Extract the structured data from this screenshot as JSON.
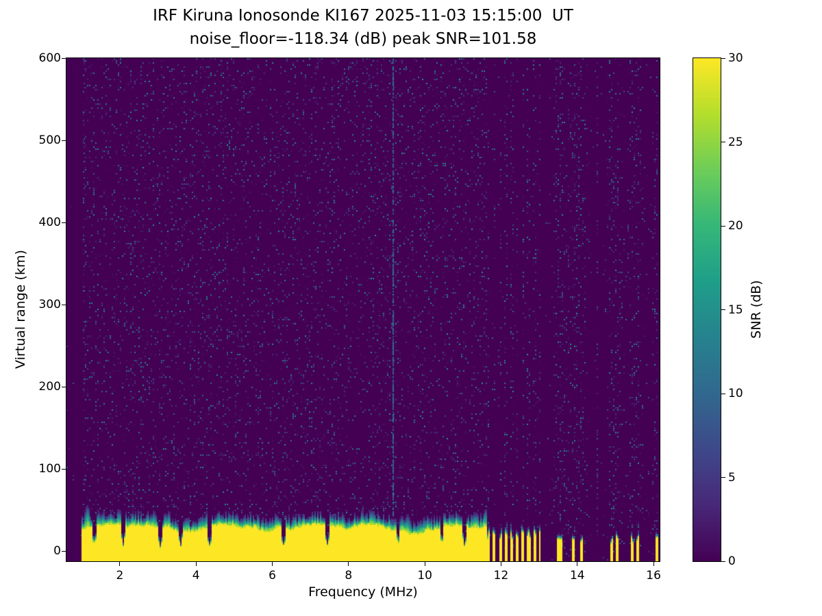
{
  "figure": {
    "title_line1": "IRF Kiruna Ionosonde KI167 2025-11-03 15:15:00  UT",
    "title_line2": "noise_floor=-118.34 (dB) peak SNR=101.58",
    "xlabel": "Frequency (MHz)",
    "ylabel": "Virtual range (km)",
    "colorbar_label": "SNR (dB)",
    "background_color": "#ffffff",
    "text_color": "#000000"
  },
  "chart_data": {
    "type": "heatmap",
    "title": "IRF Kiruna Ionosonde KI167 2025-11-03 15:15:00  UT",
    "subtitle": "noise_floor=-118.34 (dB) peak SNR=101.58",
    "station": "IRF Kiruna Ionosonde KI167",
    "timestamp_ut": "2025-11-03 15:15:00",
    "noise_floor_db": -118.34,
    "peak_snr_db": 101.58,
    "xlabel": "Frequency (MHz)",
    "ylabel": "Virtual range (km)",
    "colorbar_label": "SNR (dB)",
    "colormap": "viridis",
    "colormap_stops": [
      "#440154",
      "#482878",
      "#3e4989",
      "#31688e",
      "#26828e",
      "#1f9e89",
      "#35b779",
      "#6dcd59",
      "#b4de2c",
      "#fde725"
    ],
    "x_range_mhz": [
      0.6,
      16.16
    ],
    "y_range_km": [
      -12.5,
      600
    ],
    "x_ticks": [
      2,
      4,
      6,
      8,
      10,
      12,
      14,
      16
    ],
    "y_ticks": [
      0,
      100,
      200,
      300,
      400,
      500,
      600
    ],
    "colorbar_ticks": [
      0,
      5,
      10,
      15,
      20,
      25,
      30
    ],
    "colorbar_range_db": [
      0,
      30
    ],
    "features": {
      "noise": {
        "speckle_probability": 0.16,
        "max_speckle_db": 14,
        "data_start_mhz": 1.0,
        "striped_noise_start_mhz": 11.64,
        "interference_line_mhz": 9.15,
        "interference_line_db_range": [
          5,
          13
        ],
        "elevated_noise_columns_mhz": [
          1.05,
          14.5
        ]
      },
      "ground_band": {
        "start_mhz": 1.0,
        "continuous_until_mhz": 11.62,
        "yellow_top_km_range": [
          21,
          33
        ],
        "transition_extra_km_range": [
          6,
          18
        ],
        "notches_mhz": [
          1.35,
          2.1,
          3.05,
          3.6,
          4.35,
          6.3,
          7.45,
          9.3,
          10.45,
          11.05
        ],
        "bumps": [
          {
            "mhz": 1.15,
            "top_km": 58
          },
          {
            "mhz": 2.9,
            "top_km": 50
          },
          {
            "mhz": 4.3,
            "top_km": 50
          },
          {
            "mhz": 7.85,
            "top_km": 45
          },
          {
            "mhz": 9.55,
            "top_km": 46
          },
          {
            "mhz": 11.35,
            "top_km": 48
          },
          {
            "mhz": 11.6,
            "top_km": 53
          }
        ],
        "comb_region_mhz": [
          11.64,
          13.02
        ],
        "comb_period_mhz": 0.15,
        "comb_duty": 0.5,
        "comb_top_km_range": [
          14,
          24
        ],
        "sparse_stripes_mhz": [
          13.5,
          13.58,
          13.9,
          14.12,
          14.9,
          15.05,
          15.45,
          15.58,
          16.08
        ],
        "sparse_stripe_halfwidth_mhz": 0.035,
        "sparse_top_km_range": [
          10,
          18
        ]
      }
    }
  }
}
